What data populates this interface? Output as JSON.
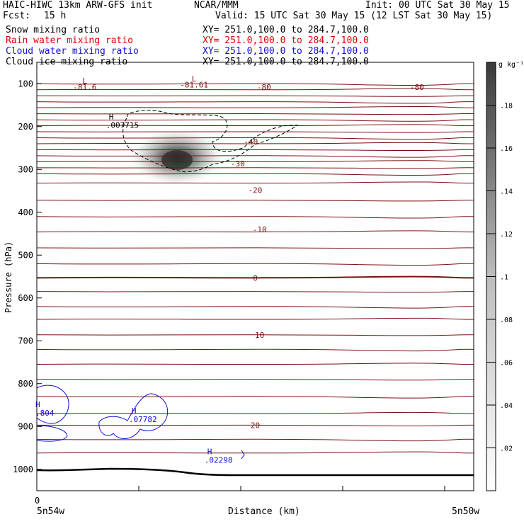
{
  "header": {
    "model": "HAIC-HIWC 13km ARW-GFS init",
    "org": "NCAR/MMM",
    "init": "Init: 00 UTC Sat 30 May 15",
    "fcst_label": "Fcst:",
    "fcst_value": "15 h",
    "valid": "Valid: 15 UTC Sat 30 May 15 (12 LST Sat 30 May 15)",
    "fields": [
      {
        "name": "Snow mixing ratio",
        "xy": "XY= 251.0,100.0 to 284.7,100.0",
        "color": "#000000"
      },
      {
        "name": "Rain water mixing ratio",
        "xy": "XY= 251.0,100.0 to 284.7,100.0",
        "color": "#e00000"
      },
      {
        "name": "Cloud water mixing ratio",
        "xy": "XY= 251.0,100.0 to 284.7,100.0",
        "color": "#1010d0"
      },
      {
        "name": "Cloud ice mixing ratio",
        "xy": "XY= 251.0,100.0 to 284.7,100.0",
        "color": "#000000"
      }
    ]
  },
  "chart_data": {
    "type": "contour",
    "ylabel": "Pressure (hPa)",
    "xlabel": "Distance (km)",
    "x_tick_label": "0",
    "x_left_label": "5n54w",
    "x_right_label": "5n50w",
    "ylim": [
      1050,
      50
    ],
    "y_ticks": [
      100,
      200,
      300,
      400,
      500,
      600,
      700,
      800,
      900,
      1000
    ],
    "colorbar": {
      "unit": "g kg⁻¹",
      "ticks": [
        ".02",
        ".04",
        ".06",
        ".08",
        ".1",
        ".12",
        ".14",
        ".16",
        ".18"
      ],
      "range": [
        0,
        0.2
      ]
    },
    "temperature_contours": {
      "color": "#7a1010",
      "labels": [
        {
          "text": "-81.6",
          "p": 108,
          "pos": 0.11
        },
        {
          "text": "-81.61",
          "p": 102,
          "pos": 0.36
        },
        {
          "text": "-80",
          "p": 108,
          "pos": 0.52
        },
        {
          "text": "-80",
          "p": 108,
          "pos": 0.87
        },
        {
          "text": "-40",
          "p": 235,
          "pos": 0.49
        },
        {
          "text": "-30",
          "p": 286,
          "pos": 0.46
        },
        {
          "text": "-20",
          "p": 348,
          "pos": 0.5
        },
        {
          "text": "-10",
          "p": 440,
          "pos": 0.51
        },
        {
          "text": "0",
          "p": 553,
          "pos": 0.5
        },
        {
          "text": "10",
          "p": 686,
          "pos": 0.51
        },
        {
          "text": "20",
          "p": 897,
          "pos": 0.5
        }
      ],
      "extrema": [
        {
          "text": "L",
          "p": 93,
          "pos": 0.11
        },
        {
          "text": "L",
          "p": 88,
          "pos": 0.36
        }
      ]
    },
    "cloud_ice_max": {
      "marker": "H",
      "value": ".007715",
      "p": 208,
      "pos": 0.22
    },
    "cloud_water_max": [
      {
        "marker": "H",
        "value": ".804",
        "p": 865,
        "pos": 0.0
      },
      {
        "marker": "H",
        "value": ".07782",
        "p": 890,
        "pos": 0.23
      },
      {
        "marker": "H",
        "value": ".02298",
        "p": 985,
        "pos": 0.4
      }
    ],
    "snow_max": {
      "p": 275,
      "pos": 0.31,
      "value": 0.19
    }
  }
}
